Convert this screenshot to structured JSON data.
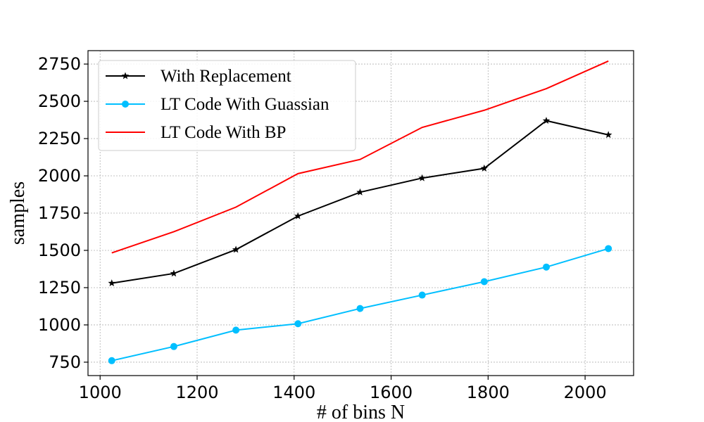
{
  "chart_data": {
    "type": "line",
    "title": "",
    "xlabel": "# of bins N",
    "ylabel": "samples",
    "xlim": [
      975,
      2100
    ],
    "ylim": [
      660,
      2840
    ],
    "x_ticks": [
      1000,
      1200,
      1400,
      1600,
      1800,
      2000
    ],
    "y_ticks": [
      750,
      1000,
      1250,
      1500,
      1750,
      2000,
      2250,
      2500,
      2750
    ],
    "grid": true,
    "legend_position": "top-left",
    "x": [
      1024,
      1152,
      1280,
      1408,
      1536,
      1664,
      1792,
      1920,
      2048
    ],
    "series": [
      {
        "name": "With Replacement",
        "color": "#000000",
        "marker": "star",
        "values": [
          1280,
          1345,
          1505,
          1730,
          1890,
          1985,
          2050,
          2370,
          2275
        ]
      },
      {
        "name": "LT Code With Guassian",
        "color": "#00bfff",
        "marker": "circle",
        "values": [
          760,
          855,
          965,
          1008,
          1110,
          1200,
          1290,
          1388,
          1512
        ]
      },
      {
        "name": "LT Code With BP",
        "color": "#ff0000",
        "marker": "none",
        "values": [
          1483,
          1625,
          1790,
          2015,
          2110,
          2325,
          2440,
          2585,
          2770
        ]
      }
    ]
  }
}
